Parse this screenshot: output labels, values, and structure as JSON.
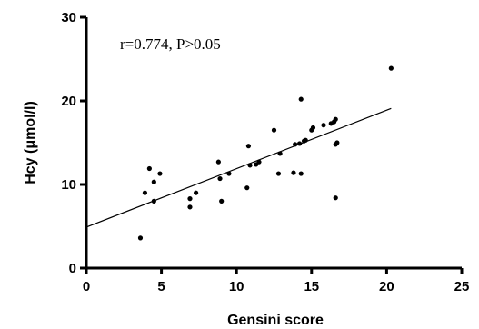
{
  "chart_data": {
    "type": "scatter",
    "title": "",
    "xlabel": "Gensini score",
    "ylabel": "Hcy (μmol/l)",
    "xlim": [
      0,
      25
    ],
    "ylim": [
      0,
      30
    ],
    "xticks": [
      0,
      5,
      10,
      15,
      20,
      25
    ],
    "yticks": [
      0,
      10,
      20,
      30
    ],
    "xtick_labels": [
      "0",
      "5",
      "10",
      "15",
      "20",
      "25"
    ],
    "ytick_labels": [
      "0",
      "10",
      "20",
      "30"
    ],
    "grid": false,
    "legend": "none",
    "annotation": "r=0.774, P>0.05",
    "point_color": "#000000",
    "series": [
      {
        "points": [
          [
            3.6,
            3.6
          ],
          [
            3.9,
            9.0
          ],
          [
            4.2,
            11.9
          ],
          [
            4.5,
            8.0
          ],
          [
            4.5,
            10.3
          ],
          [
            4.9,
            11.3
          ],
          [
            6.9,
            7.3
          ],
          [
            6.9,
            8.3
          ],
          [
            7.3,
            9.0
          ],
          [
            8.8,
            12.7
          ],
          [
            8.9,
            10.7
          ],
          [
            9.0,
            8.0
          ],
          [
            9.5,
            11.3
          ],
          [
            10.7,
            9.6
          ],
          [
            10.8,
            14.6
          ],
          [
            10.9,
            12.3
          ],
          [
            11.3,
            12.4
          ],
          [
            11.5,
            12.7
          ],
          [
            12.5,
            16.5
          ],
          [
            12.8,
            11.3
          ],
          [
            12.9,
            13.7
          ],
          [
            13.8,
            11.4
          ],
          [
            13.9,
            14.8
          ],
          [
            14.2,
            14.9
          ],
          [
            14.3,
            20.2
          ],
          [
            14.3,
            11.3
          ],
          [
            14.5,
            15.2
          ],
          [
            14.6,
            15.3
          ],
          [
            15.0,
            16.5
          ],
          [
            15.1,
            16.8
          ],
          [
            15.8,
            17.1
          ],
          [
            16.3,
            17.3
          ],
          [
            16.5,
            17.5
          ],
          [
            16.6,
            17.8
          ],
          [
            16.6,
            14.8
          ],
          [
            16.7,
            15.0
          ],
          [
            16.6,
            8.4
          ],
          [
            20.3,
            23.9
          ]
        ],
        "fit_line": {
          "x": [
            0,
            20.3
          ],
          "y": [
            4.9,
            19.1
          ]
        }
      }
    ]
  }
}
